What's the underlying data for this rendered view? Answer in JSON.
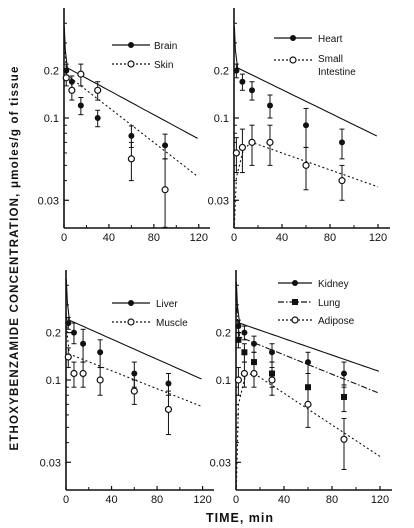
{
  "chart_data": {
    "type": "scatter",
    "ylabel": "ETHOXYBENZAMIDE CONCENTRATION, μmoles/g of tissue",
    "xlabel": "TIME, min",
    "y_scale": "log",
    "ylim": [
      0.02,
      0.5
    ],
    "xlim": [
      0,
      130
    ],
    "panels": [
      {
        "id": "top-left",
        "xticks": [
          "0",
          "40",
          "80",
          "120"
        ],
        "yticks": [
          "0.2",
          "0.1",
          "0.03"
        ],
        "series": [
          {
            "name": "Brain",
            "marker": "filled-circle",
            "line": "solid",
            "points": [
              [
                2,
                0.2
              ],
              [
                7,
                0.17
              ],
              [
                15,
                0.12
              ],
              [
                30,
                0.1
              ],
              [
                60,
                0.077
              ],
              [
                90,
                0.067
              ]
            ],
            "error": [
              0.02,
              0.015,
              0.015,
              0.012,
              0.012,
              0.012
            ]
          },
          {
            "name": "Skin",
            "marker": "open-circle",
            "line": "dotted",
            "points": [
              [
                2,
                0.18
              ],
              [
                7,
                0.15
              ],
              [
                15,
                0.19
              ],
              [
                30,
                0.15
              ],
              [
                60,
                0.055
              ],
              [
                90,
                0.035
              ]
            ],
            "error": [
              0.02,
              0.02,
              0.03,
              0.02,
              0.015,
              0.02
            ]
          }
        ]
      },
      {
        "id": "top-right",
        "xticks": [
          "0",
          "40",
          "80",
          "120"
        ],
        "yticks": [
          "0.2",
          "0.1",
          "0.03"
        ],
        "series": [
          {
            "name": "Heart",
            "marker": "filled-circle",
            "line": "solid",
            "points": [
              [
                2,
                0.2
              ],
              [
                7,
                0.17
              ],
              [
                15,
                0.15
              ],
              [
                30,
                0.12
              ],
              [
                60,
                0.09
              ],
              [
                90,
                0.07
              ]
            ],
            "error": [
              0.02,
              0.02,
              0.02,
              0.02,
              0.025,
              0.015
            ]
          },
          {
            "name": "Small Intestine",
            "marker": "open-circle",
            "line": "dotted",
            "points": [
              [
                2,
                0.06
              ],
              [
                7,
                0.065
              ],
              [
                15,
                0.07
              ],
              [
                30,
                0.07
              ],
              [
                60,
                0.05
              ],
              [
                90,
                0.04
              ]
            ],
            "error": [
              0.015,
              0.02,
              0.02,
              0.02,
              0.015,
              0.01
            ]
          }
        ]
      },
      {
        "id": "bottom-left",
        "xticks": [
          "0",
          "40",
          "80",
          "120"
        ],
        "yticks": [
          "0.2",
          "0.1",
          "0.03"
        ],
        "series": [
          {
            "name": "Liver",
            "marker": "filled-circle",
            "line": "solid",
            "points": [
              [
                2,
                0.23
              ],
              [
                7,
                0.2
              ],
              [
                15,
                0.17
              ],
              [
                30,
                0.15
              ],
              [
                60,
                0.11
              ],
              [
                90,
                0.095
              ]
            ],
            "error": [
              0.02,
              0.03,
              0.04,
              0.03,
              0.02,
              0.015
            ]
          },
          {
            "name": "Muscle",
            "marker": "open-circle",
            "line": "dotted",
            "points": [
              [
                2,
                0.14
              ],
              [
                7,
                0.11
              ],
              [
                15,
                0.11
              ],
              [
                30,
                0.1
              ],
              [
                60,
                0.085
              ],
              [
                90,
                0.065
              ]
            ],
            "error": [
              0.02,
              0.02,
              0.02,
              0.02,
              0.015,
              0.02
            ]
          }
        ]
      },
      {
        "id": "bottom-right",
        "xticks": [
          "0",
          "40",
          "80",
          "120"
        ],
        "yticks": [
          "0.2",
          "0.1",
          "0.03"
        ],
        "series": [
          {
            "name": "Kidney",
            "marker": "filled-circle",
            "line": "solid",
            "points": [
              [
                2,
                0.22
              ],
              [
                7,
                0.2
              ],
              [
                15,
                0.17
              ],
              [
                30,
                0.15
              ],
              [
                60,
                0.13
              ],
              [
                90,
                0.11
              ]
            ],
            "error": [
              0.02,
              0.02,
              0.02,
              0.02,
              0.02,
              0.02
            ]
          },
          {
            "name": "Lung",
            "marker": "filled-square",
            "line": "dash-dot",
            "points": [
              [
                2,
                0.18
              ],
              [
                7,
                0.15
              ],
              [
                15,
                0.13
              ],
              [
                30,
                0.11
              ],
              [
                60,
                0.09
              ],
              [
                90,
                0.078
              ]
            ],
            "error": [
              0.02,
              0.02,
              0.02,
              0.02,
              0.02,
              0.015
            ]
          },
          {
            "name": "Adipose",
            "marker": "open-circle",
            "line": "dotted",
            "points": [
              [
                2,
                0.1
              ],
              [
                7,
                0.11
              ],
              [
                15,
                0.11
              ],
              [
                30,
                0.1
              ],
              [
                60,
                0.07
              ],
              [
                90,
                0.042
              ]
            ],
            "error": [
              0.02,
              0.02,
              0.02,
              0.02,
              0.02,
              0.015
            ]
          }
        ]
      }
    ]
  },
  "legend_labels": {
    "top_left": [
      "Brain",
      "Skin"
    ],
    "top_right": [
      "Heart",
      "Small",
      "Intestine"
    ],
    "bottom_left": [
      "Liver",
      "Muscle"
    ],
    "bottom_right": [
      "Kidney",
      "Lung",
      "Adipose"
    ]
  }
}
